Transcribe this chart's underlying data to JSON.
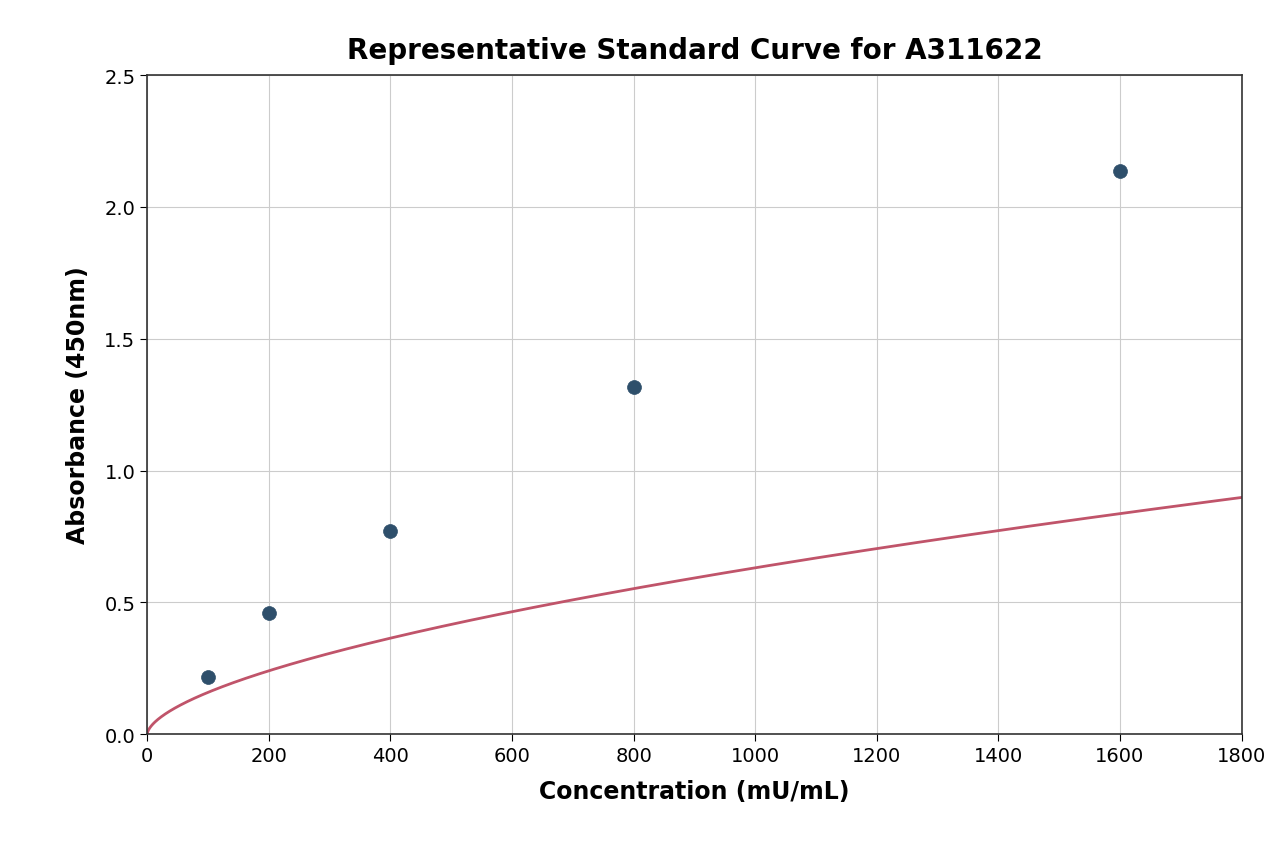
{
  "title": "Representative Standard Curve for A311622",
  "xlabel": "Concentration (mU/mL)",
  "ylabel": "Absorbance (450nm)",
  "data_x": [
    100,
    200,
    400,
    800,
    1600
  ],
  "data_y": [
    0.215,
    0.46,
    0.77,
    1.315,
    2.135
  ],
  "xlim": [
    0,
    1800
  ],
  "ylim": [
    0.0,
    2.5
  ],
  "xticks": [
    0,
    200,
    400,
    600,
    800,
    1000,
    1200,
    1400,
    1600,
    1800
  ],
  "yticks": [
    0.0,
    0.5,
    1.0,
    1.5,
    2.0,
    2.5
  ],
  "curve_color": "#c0546a",
  "marker_color": "#2e4f6b",
  "marker_edge_color": "#2e4f6b",
  "background_color": "#ffffff",
  "grid_color": "#cccccc",
  "title_fontsize": 20,
  "label_fontsize": 17,
  "tick_fontsize": 14,
  "marker_size": 10,
  "line_width": 2.0
}
